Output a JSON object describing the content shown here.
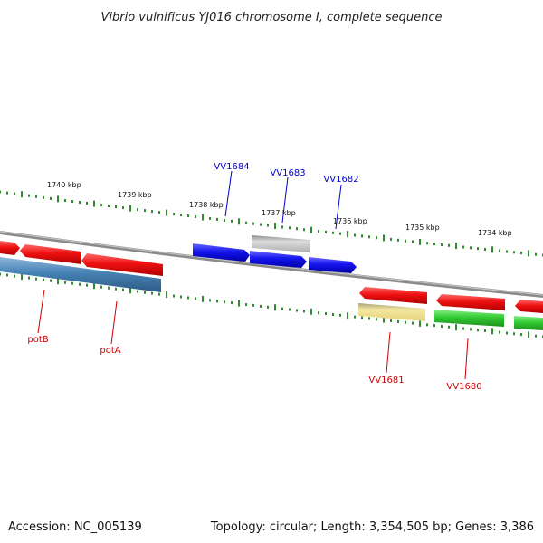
{
  "title": "Vibrio vulnificus YJ016 chromosome I, complete sequence",
  "footer": {
    "accession": "Accession: NC_005139",
    "summary": "Topology: circular; Length: 3,354,505 bp; Genes: 3,386"
  },
  "colors": {
    "backbone": "#8a8a8a",
    "tick": "#2e8b2e",
    "label_blue": "#0000cc",
    "label_red": "#cc0000",
    "red": "#ee1111",
    "steelblue": "#4682b4",
    "blue": "#1515ee",
    "gray": "#b8b8b8",
    "khaki": "#efe08a",
    "green": "#33cc33"
  },
  "scale_labels": [
    "1740 kbp",
    "1739 kbp",
    "1738 kbp",
    "1737 kbp",
    "1736 kbp",
    "1735 kbp",
    "1734 kbp"
  ],
  "gene_labels": [
    {
      "text": "VV1684",
      "color": "blue"
    },
    {
      "text": "VV1683",
      "color": "blue"
    },
    {
      "text": "VV1682",
      "color": "blue"
    },
    {
      "text": "potB",
      "color": "red"
    },
    {
      "text": "potA",
      "color": "red"
    },
    {
      "text": "VV1681",
      "color": "red"
    },
    {
      "text": "VV1680",
      "color": "red"
    }
  ]
}
